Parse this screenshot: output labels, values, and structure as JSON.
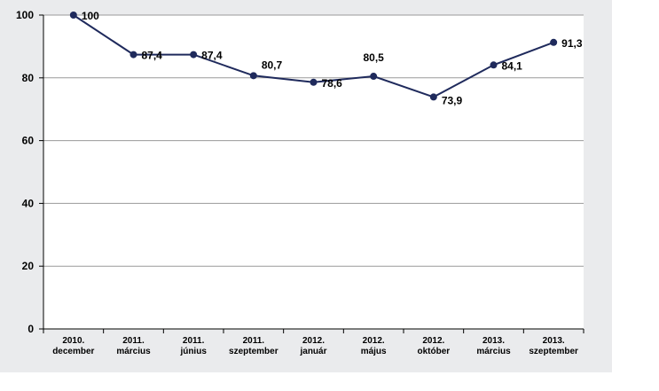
{
  "chart_data": {
    "type": "line",
    "title": "",
    "xlabel": "",
    "ylabel": "",
    "ylim": [
      0,
      100
    ],
    "yticks": [
      0,
      20,
      40,
      60,
      80,
      100
    ],
    "grid": true,
    "legend": "none",
    "categories": [
      [
        "2010.",
        "december"
      ],
      [
        "2011.",
        "március"
      ],
      [
        "2011.",
        "június"
      ],
      [
        "2011.",
        "szeptember"
      ],
      [
        "2012.",
        "január"
      ],
      [
        "2012.",
        "május"
      ],
      [
        "2012.",
        "október"
      ],
      [
        "2013.",
        "március"
      ],
      [
        "2013.",
        "szeptember"
      ]
    ],
    "series": [
      {
        "values": [
          100,
          87.4,
          87.4,
          80.7,
          78.6,
          80.5,
          73.9,
          84.1,
          91.3
        ],
        "labels": [
          "100",
          "87,4",
          "87,4",
          "80,7",
          "78,6",
          "80,5",
          "73,9",
          "84,1",
          "91,3"
        ],
        "color": "#1f2a5c"
      }
    ],
    "colors": {
      "plot_background": "#ffffff",
      "outer_background": "#eaebed",
      "gridline": "#9a9a9a",
      "axis": "#000000"
    }
  }
}
